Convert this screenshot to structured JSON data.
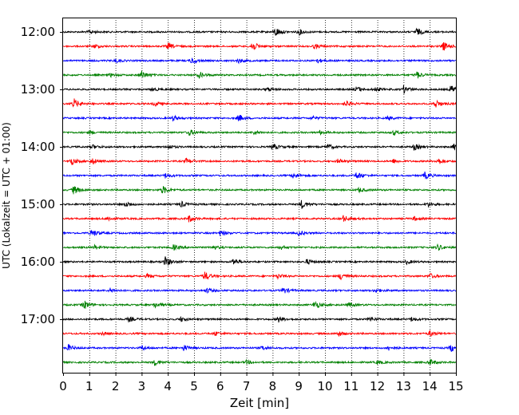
{
  "chart_data": {
    "type": "line",
    "subtype": "helicorder",
    "xlabel": "Zeit  [min]",
    "ylabel": "UTC (Lokalzeit = UTC + 01:00)",
    "xlim": [
      0,
      15
    ],
    "x_ticks": [
      0,
      1,
      2,
      3,
      4,
      5,
      6,
      7,
      8,
      9,
      10,
      11,
      12,
      13,
      14,
      15
    ],
    "y_tick_labels": [
      "12:00",
      "13:00",
      "14:00",
      "15:00",
      "16:00",
      "17:00"
    ],
    "grid": "vertical dotted at each minute",
    "traces_per_hour": 4,
    "trace_minutes": 15,
    "color_cycle": [
      "#000000",
      "#ff0000",
      "#0000ff",
      "#008000"
    ],
    "traces": [
      {
        "start": "12:00",
        "events": [
          [
            1.0,
            0.35
          ],
          [
            8.1,
            0.9
          ],
          [
            9.0,
            0.55
          ],
          [
            13.5,
            0.7
          ]
        ]
      },
      {
        "start": "12:15",
        "events": [
          [
            1.2,
            0.4
          ],
          [
            4.0,
            0.6
          ],
          [
            7.2,
            1.0
          ],
          [
            9.6,
            0.45
          ],
          [
            14.5,
            0.9
          ]
        ]
      },
      {
        "start": "12:30",
        "events": [
          [
            2.0,
            0.35
          ],
          [
            4.9,
            0.6
          ],
          [
            6.7,
            0.45
          ],
          [
            9.7,
            0.4
          ]
        ]
      },
      {
        "start": "12:45",
        "events": [
          [
            1.8,
            0.3
          ],
          [
            3.0,
            0.8
          ],
          [
            5.2,
            0.6
          ],
          [
            13.5,
            0.7
          ]
        ]
      },
      {
        "start": "13:00",
        "events": [
          [
            3.4,
            0.35
          ],
          [
            7.8,
            0.4
          ],
          [
            11.2,
            0.55
          ],
          [
            11.9,
            0.4
          ],
          [
            13.0,
            0.7
          ],
          [
            14.8,
            0.8
          ]
        ]
      },
      {
        "start": "13:15",
        "events": [
          [
            0.4,
            1.0
          ],
          [
            3.5,
            0.5
          ],
          [
            10.8,
            0.55
          ],
          [
            14.2,
            0.85
          ]
        ]
      },
      {
        "start": "13:30",
        "events": [
          [
            4.2,
            0.5
          ],
          [
            6.7,
            0.7
          ],
          [
            9.5,
            0.35
          ],
          [
            12.4,
            0.4
          ]
        ]
      },
      {
        "start": "13:45",
        "events": [
          [
            1.0,
            0.3
          ],
          [
            4.8,
            0.6
          ],
          [
            7.3,
            0.45
          ],
          [
            9.8,
            0.35
          ],
          [
            12.6,
            0.4
          ]
        ]
      },
      {
        "start": "14:00",
        "events": [
          [
            1.1,
            0.4
          ],
          [
            4.0,
            0.4
          ],
          [
            8.0,
            0.6
          ],
          [
            10.1,
            0.55
          ],
          [
            13.4,
            0.6
          ],
          [
            14.9,
            0.55
          ]
        ]
      },
      {
        "start": "14:15",
        "events": [
          [
            0.3,
            0.7
          ],
          [
            1.1,
            0.6
          ],
          [
            4.7,
            0.55
          ],
          [
            10.5,
            0.45
          ],
          [
            12.6,
            0.4
          ],
          [
            14.3,
            0.65
          ]
        ]
      },
      {
        "start": "14:30",
        "events": [
          [
            3.9,
            0.45
          ],
          [
            8.8,
            0.6
          ],
          [
            11.2,
            0.75
          ],
          [
            13.8,
            0.7
          ]
        ]
      },
      {
        "start": "14:45",
        "events": [
          [
            0.4,
            0.85
          ],
          [
            3.8,
            0.75
          ],
          [
            11.3,
            0.45
          ]
        ]
      },
      {
        "start": "15:00",
        "events": [
          [
            2.4,
            0.55
          ],
          [
            4.5,
            0.55
          ],
          [
            9.1,
            0.8
          ],
          [
            13.9,
            0.45
          ]
        ]
      },
      {
        "start": "15:15",
        "events": [
          [
            1.7,
            0.45
          ],
          [
            4.8,
            0.65
          ],
          [
            10.7,
            0.6
          ],
          [
            13.4,
            0.4
          ]
        ]
      },
      {
        "start": "15:30",
        "events": [
          [
            1.1,
            0.75
          ],
          [
            6.0,
            0.55
          ],
          [
            9.0,
            0.45
          ]
        ]
      },
      {
        "start": "15:45",
        "events": [
          [
            1.2,
            0.35
          ],
          [
            4.2,
            0.55
          ],
          [
            5.7,
            0.4
          ],
          [
            8.3,
            0.4
          ],
          [
            14.3,
            0.6
          ]
        ]
      },
      {
        "start": "16:00",
        "events": [
          [
            3.9,
            0.95
          ],
          [
            6.5,
            0.7
          ],
          [
            9.3,
            0.5
          ],
          [
            13.1,
            0.4
          ]
        ]
      },
      {
        "start": "16:15",
        "events": [
          [
            3.2,
            0.4
          ],
          [
            5.4,
            0.85
          ],
          [
            8.2,
            0.45
          ],
          [
            10.6,
            0.75
          ],
          [
            14.0,
            0.5
          ]
        ]
      },
      {
        "start": "16:30",
        "events": [
          [
            1.8,
            0.4
          ],
          [
            5.5,
            0.45
          ],
          [
            8.4,
            0.6
          ],
          [
            11.9,
            0.4
          ]
        ]
      },
      {
        "start": "16:45",
        "events": [
          [
            0.8,
            0.85
          ],
          [
            3.5,
            0.55
          ],
          [
            9.6,
            0.8
          ],
          [
            10.9,
            0.45
          ]
        ]
      },
      {
        "start": "17:00",
        "events": [
          [
            2.5,
            0.45
          ],
          [
            4.5,
            0.45
          ],
          [
            8.2,
            0.65
          ],
          [
            11.7,
            0.4
          ],
          [
            13.3,
            0.4
          ]
        ]
      },
      {
        "start": "17:15",
        "events": [
          [
            1.5,
            0.3
          ],
          [
            5.8,
            0.4
          ],
          [
            10.5,
            0.5
          ],
          [
            14.0,
            0.55
          ]
        ]
      },
      {
        "start": "17:30",
        "events": [
          [
            0.2,
            0.6
          ],
          [
            3.0,
            0.45
          ],
          [
            4.6,
            0.55
          ],
          [
            7.6,
            0.45
          ],
          [
            12.4,
            0.5
          ],
          [
            14.8,
            0.75
          ]
        ]
      },
      {
        "start": "17:45",
        "events": [
          [
            3.5,
            0.55
          ],
          [
            7.0,
            0.35
          ],
          [
            12.0,
            0.35
          ],
          [
            14.0,
            0.6
          ]
        ]
      }
    ]
  }
}
